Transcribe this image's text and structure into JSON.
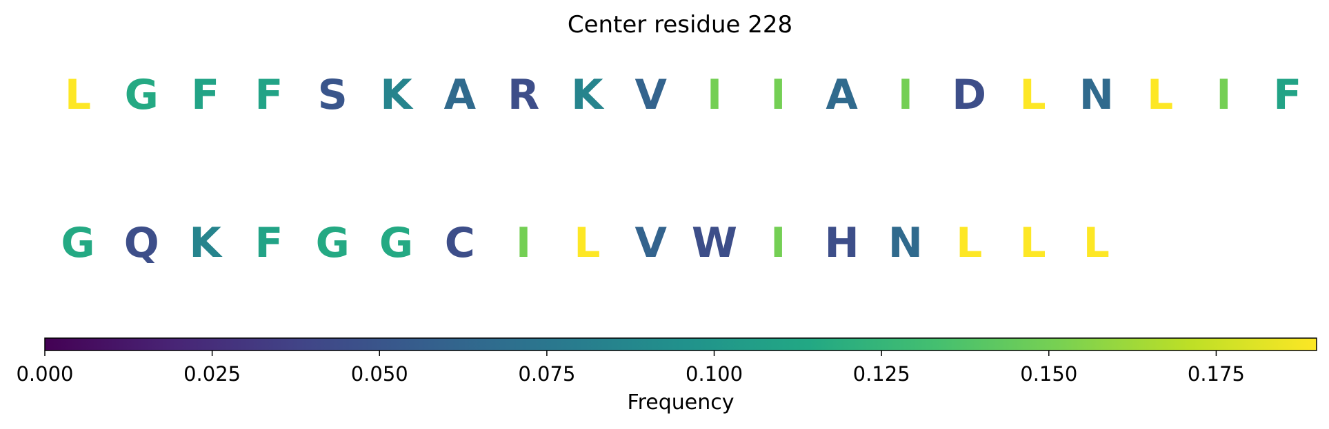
{
  "chart_data": {
    "type": "heatmap",
    "title": "Center residue 228",
    "rows": [
      {
        "letters": [
          "L",
          "G",
          "F",
          "F",
          "S",
          "K",
          "A",
          "R",
          "K",
          "V",
          "I",
          "I",
          "A",
          "I",
          "D",
          "L",
          "N",
          "L",
          "I",
          "F"
        ],
        "values": [
          0.19,
          0.115,
          0.11,
          0.11,
          0.05,
          0.085,
          0.065,
          0.045,
          0.085,
          0.06,
          0.15,
          0.15,
          0.065,
          0.15,
          0.045,
          0.19,
          0.065,
          0.19,
          0.15,
          0.11
        ]
      },
      {
        "letters": [
          "G",
          "Q",
          "K",
          "F",
          "G",
          "G",
          "C",
          "I",
          "L",
          "V",
          "W",
          "I",
          "H",
          "N",
          "L",
          "L",
          "L"
        ],
        "values": [
          0.115,
          0.045,
          0.085,
          0.11,
          0.115,
          0.115,
          0.045,
          0.15,
          0.19,
          0.06,
          0.045,
          0.15,
          0.045,
          0.065,
          0.19,
          0.19,
          0.19
        ]
      }
    ],
    "colorbar": {
      "label": "Frequency",
      "range": [
        0.0,
        0.19
      ],
      "colormap": "viridis",
      "ticks": [
        "0.000",
        "0.025",
        "0.050",
        "0.075",
        "0.100",
        "0.125",
        "0.150",
        "0.175"
      ]
    }
  }
}
